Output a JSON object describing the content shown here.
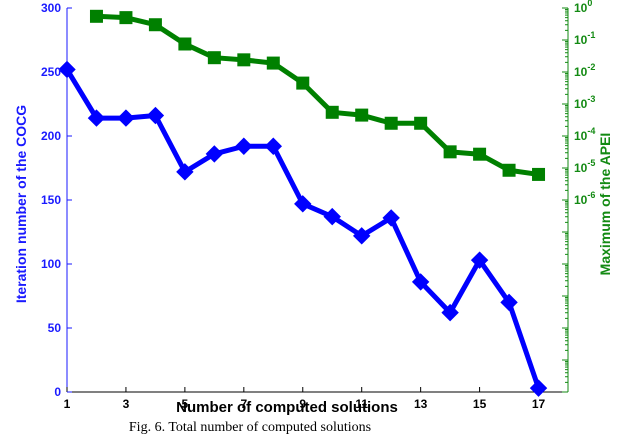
{
  "chart_data": {
    "type": "line",
    "xlabel": "Number of computed solutions",
    "ylabel_left": "Iteration number of the COCG",
    "ylabel_right": "Maximum of the APEI",
    "x_ticks": [
      1,
      3,
      5,
      7,
      9,
      11,
      13,
      15,
      17
    ],
    "xlim": [
      1,
      18
    ],
    "y_left_ticks": [
      0,
      50,
      100,
      150,
      200,
      250,
      300
    ],
    "y_left_lim": [
      0,
      300
    ],
    "y_right_scale": "log",
    "y_right_tick_exponents": [
      0,
      -1,
      -2,
      -3,
      -4,
      -5,
      -6
    ],
    "y_right_tick_base": "10",
    "y_right_lim": [
      1e-12,
      1
    ],
    "grid": false,
    "series": [
      {
        "axis": "left",
        "color": "#0000ff",
        "marker": "diamond",
        "x": [
          1,
          2,
          3,
          4,
          5,
          6,
          7,
          8,
          9,
          10,
          11,
          12,
          13,
          14,
          15,
          16,
          17
        ],
        "values": [
          252,
          214,
          214,
          216,
          172,
          186,
          192,
          192,
          147,
          137,
          122,
          136,
          86,
          62,
          103,
          70,
          3
        ]
      },
      {
        "axis": "right",
        "color": "#008000",
        "marker": "square",
        "x": [
          2,
          3,
          4,
          5,
          6,
          7,
          8,
          9,
          10,
          11,
          12,
          13,
          14,
          15,
          16,
          17
        ],
        "values": [
          0.55,
          0.5,
          0.3,
          0.075,
          0.028,
          0.024,
          0.019,
          0.0045,
          0.00055,
          0.00045,
          0.00025,
          0.00025,
          3.2e-05,
          2.7e-05,
          8.5e-06,
          6.3e-06
        ]
      }
    ],
    "caption": "Fig. 6. Total number of computed solutions"
  }
}
